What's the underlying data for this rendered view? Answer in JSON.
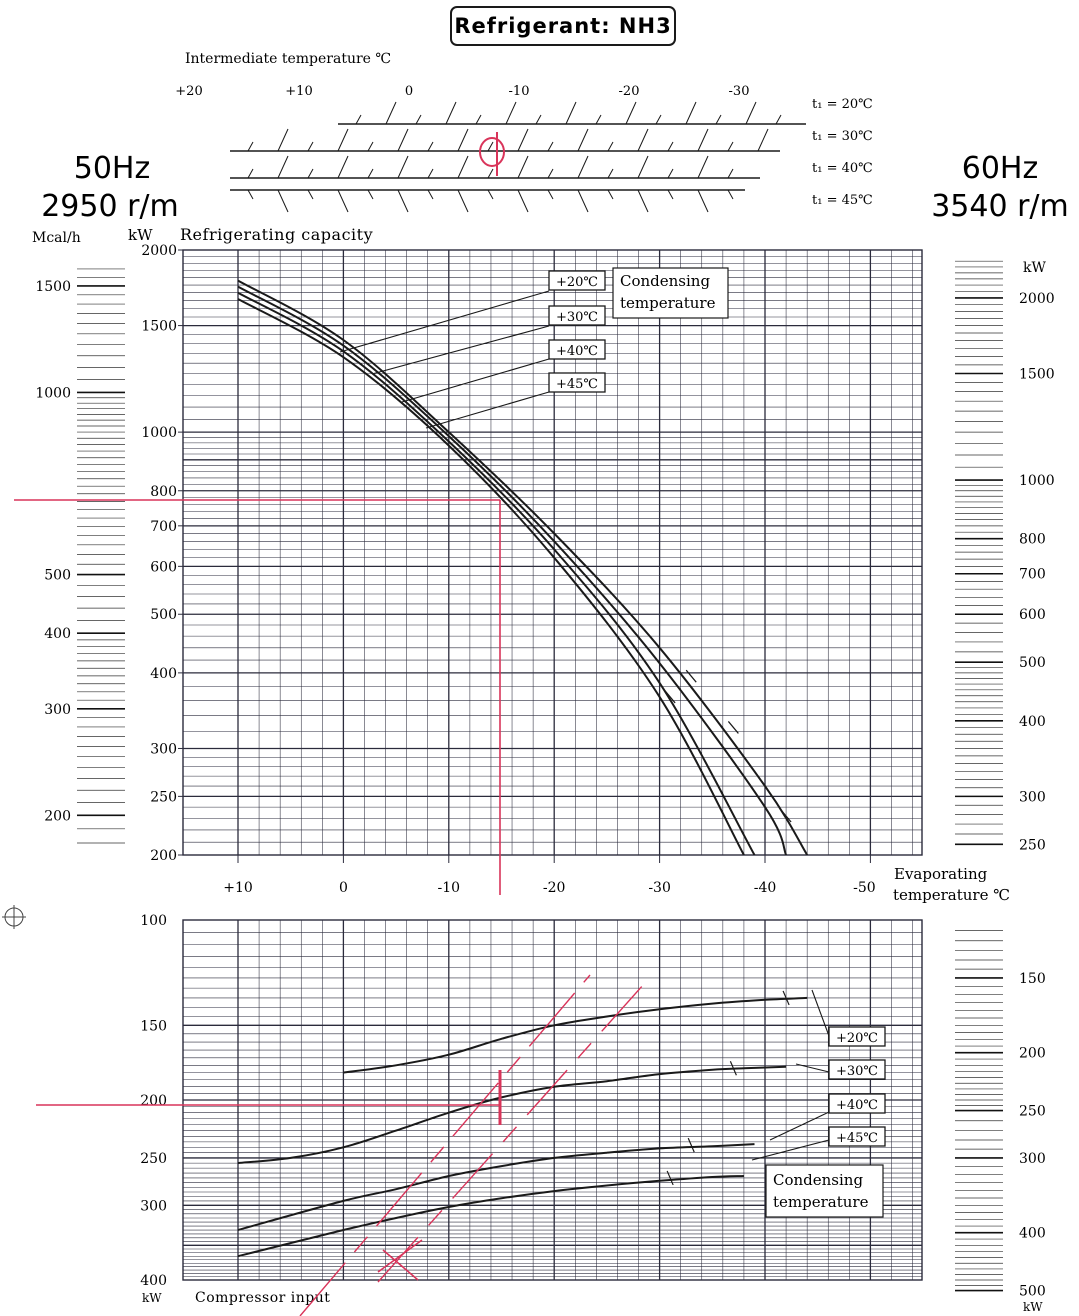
{
  "title": "Refrigerant: NH3",
  "left_header": {
    "freq": "50Hz",
    "speed": "2950 r/m"
  },
  "right_header": {
    "freq": "60Hz",
    "speed": "3540 r/m"
  },
  "intermediate": {
    "label": "Intermediate temperature ℃",
    "ticks": [
      "+20",
      "+10",
      "0",
      "-10",
      "-20",
      "-30"
    ],
    "lines": [
      "t₁ = 20℃",
      "t₁ = 30℃",
      "t₁ = 40℃",
      "t₁ = 45℃"
    ]
  },
  "colors": {
    "ink": "#1a1a1a",
    "grid": "#2b2b3c",
    "red": "#d9345a"
  },
  "chart_data": [
    {
      "type": "line",
      "title": "Refrigerating capacity",
      "ylabel": "kW",
      "alt_left_label": "Mcal/h",
      "right_label": "kW",
      "y_scale": "log",
      "ylim": [
        200,
        2000
      ],
      "xlim": [
        10,
        -50
      ],
      "x_ticks": [
        "+10",
        "0",
        "-10",
        "-20",
        "-30",
        "-40",
        "-50"
      ],
      "x_label_line1": "Evaporating",
      "x_label_line2": "temperature ℃",
      "y_ticks": [
        "2000",
        "1500",
        "1000",
        "800",
        "700",
        "600",
        "500",
        "400",
        "300",
        "250",
        "200"
      ],
      "mcal_ticks": [
        "1500",
        "1000",
        "500",
        "400",
        "300",
        "200"
      ],
      "right_ticks": [
        "2000",
        "1500",
        "1000",
        "800",
        "700",
        "600",
        "500",
        "400",
        "300",
        "250"
      ],
      "legend_title_1": "Condensing",
      "legend_title_2": "temperature",
      "legend_labels": [
        "+20℃",
        "+30℃",
        "+40℃",
        "+45℃"
      ],
      "series": [
        {
          "name": "+20℃",
          "x": [
            10,
            0,
            -10,
            -20,
            -30,
            -40,
            -44
          ],
          "y": [
            1780,
            1420,
            1000,
            680,
            440,
            260,
            200
          ]
        },
        {
          "name": "+30℃",
          "x": [
            10,
            0,
            -10,
            -20,
            -30,
            -40,
            -42
          ],
          "y": [
            1740,
            1390,
            985,
            660,
            415,
            240,
            200
          ]
        },
        {
          "name": "+40℃",
          "x": [
            10,
            0,
            -10,
            -20,
            -30,
            -39
          ],
          "y": [
            1700,
            1360,
            965,
            640,
            385,
            200
          ]
        },
        {
          "name": "+45℃",
          "x": [
            10,
            0,
            -10,
            -20,
            -30,
            -38
          ],
          "y": [
            1660,
            1330,
            950,
            620,
            365,
            200
          ]
        }
      ]
    },
    {
      "type": "line",
      "title": "Compressor input",
      "ylabel": "kW",
      "right_label": "kW",
      "y_scale": "log-inverted",
      "ylim": [
        100,
        400
      ],
      "xlim": [
        10,
        -50
      ],
      "y_ticks": [
        "100",
        "150",
        "200",
        "250",
        "300",
        "400"
      ],
      "right_ticks": [
        "150",
        "200",
        "250",
        "300",
        "400",
        "500"
      ],
      "legend_title_1": "Condensing",
      "legend_title_2": "temperature",
      "legend_labels": [
        "+20℃",
        "+30℃",
        "+40℃",
        "+45℃"
      ],
      "series": [
        {
          "name": "+20℃",
          "x": [
            0,
            -5,
            -10,
            -15,
            -20,
            -25,
            -30,
            -35,
            -40,
            -44
          ],
          "y": [
            180,
            175,
            168,
            158,
            150,
            145,
            141,
            138,
            136,
            135
          ]
        },
        {
          "name": "+30℃",
          "x": [
            10,
            5,
            0,
            -5,
            -10,
            -15,
            -20,
            -25,
            -30,
            -35,
            -38,
            -42
          ],
          "y": [
            255,
            250,
            240,
            225,
            210,
            198,
            190,
            186,
            181,
            178,
            177,
            176
          ]
        },
        {
          "name": "+40℃",
          "x": [
            10,
            0,
            -5,
            -10,
            -15,
            -20,
            -25,
            -30,
            -35,
            -39
          ],
          "y": [
            330,
            295,
            282,
            268,
            258,
            250,
            245,
            241,
            239,
            237
          ]
        },
        {
          "name": "+45℃",
          "x": [
            10,
            0,
            -5,
            -10,
            -15,
            -20,
            -25,
            -30,
            -35,
            -38
          ],
          "y": [
            365,
            330,
            315,
            302,
            292,
            284,
            278,
            273,
            269,
            268
          ]
        }
      ]
    }
  ]
}
